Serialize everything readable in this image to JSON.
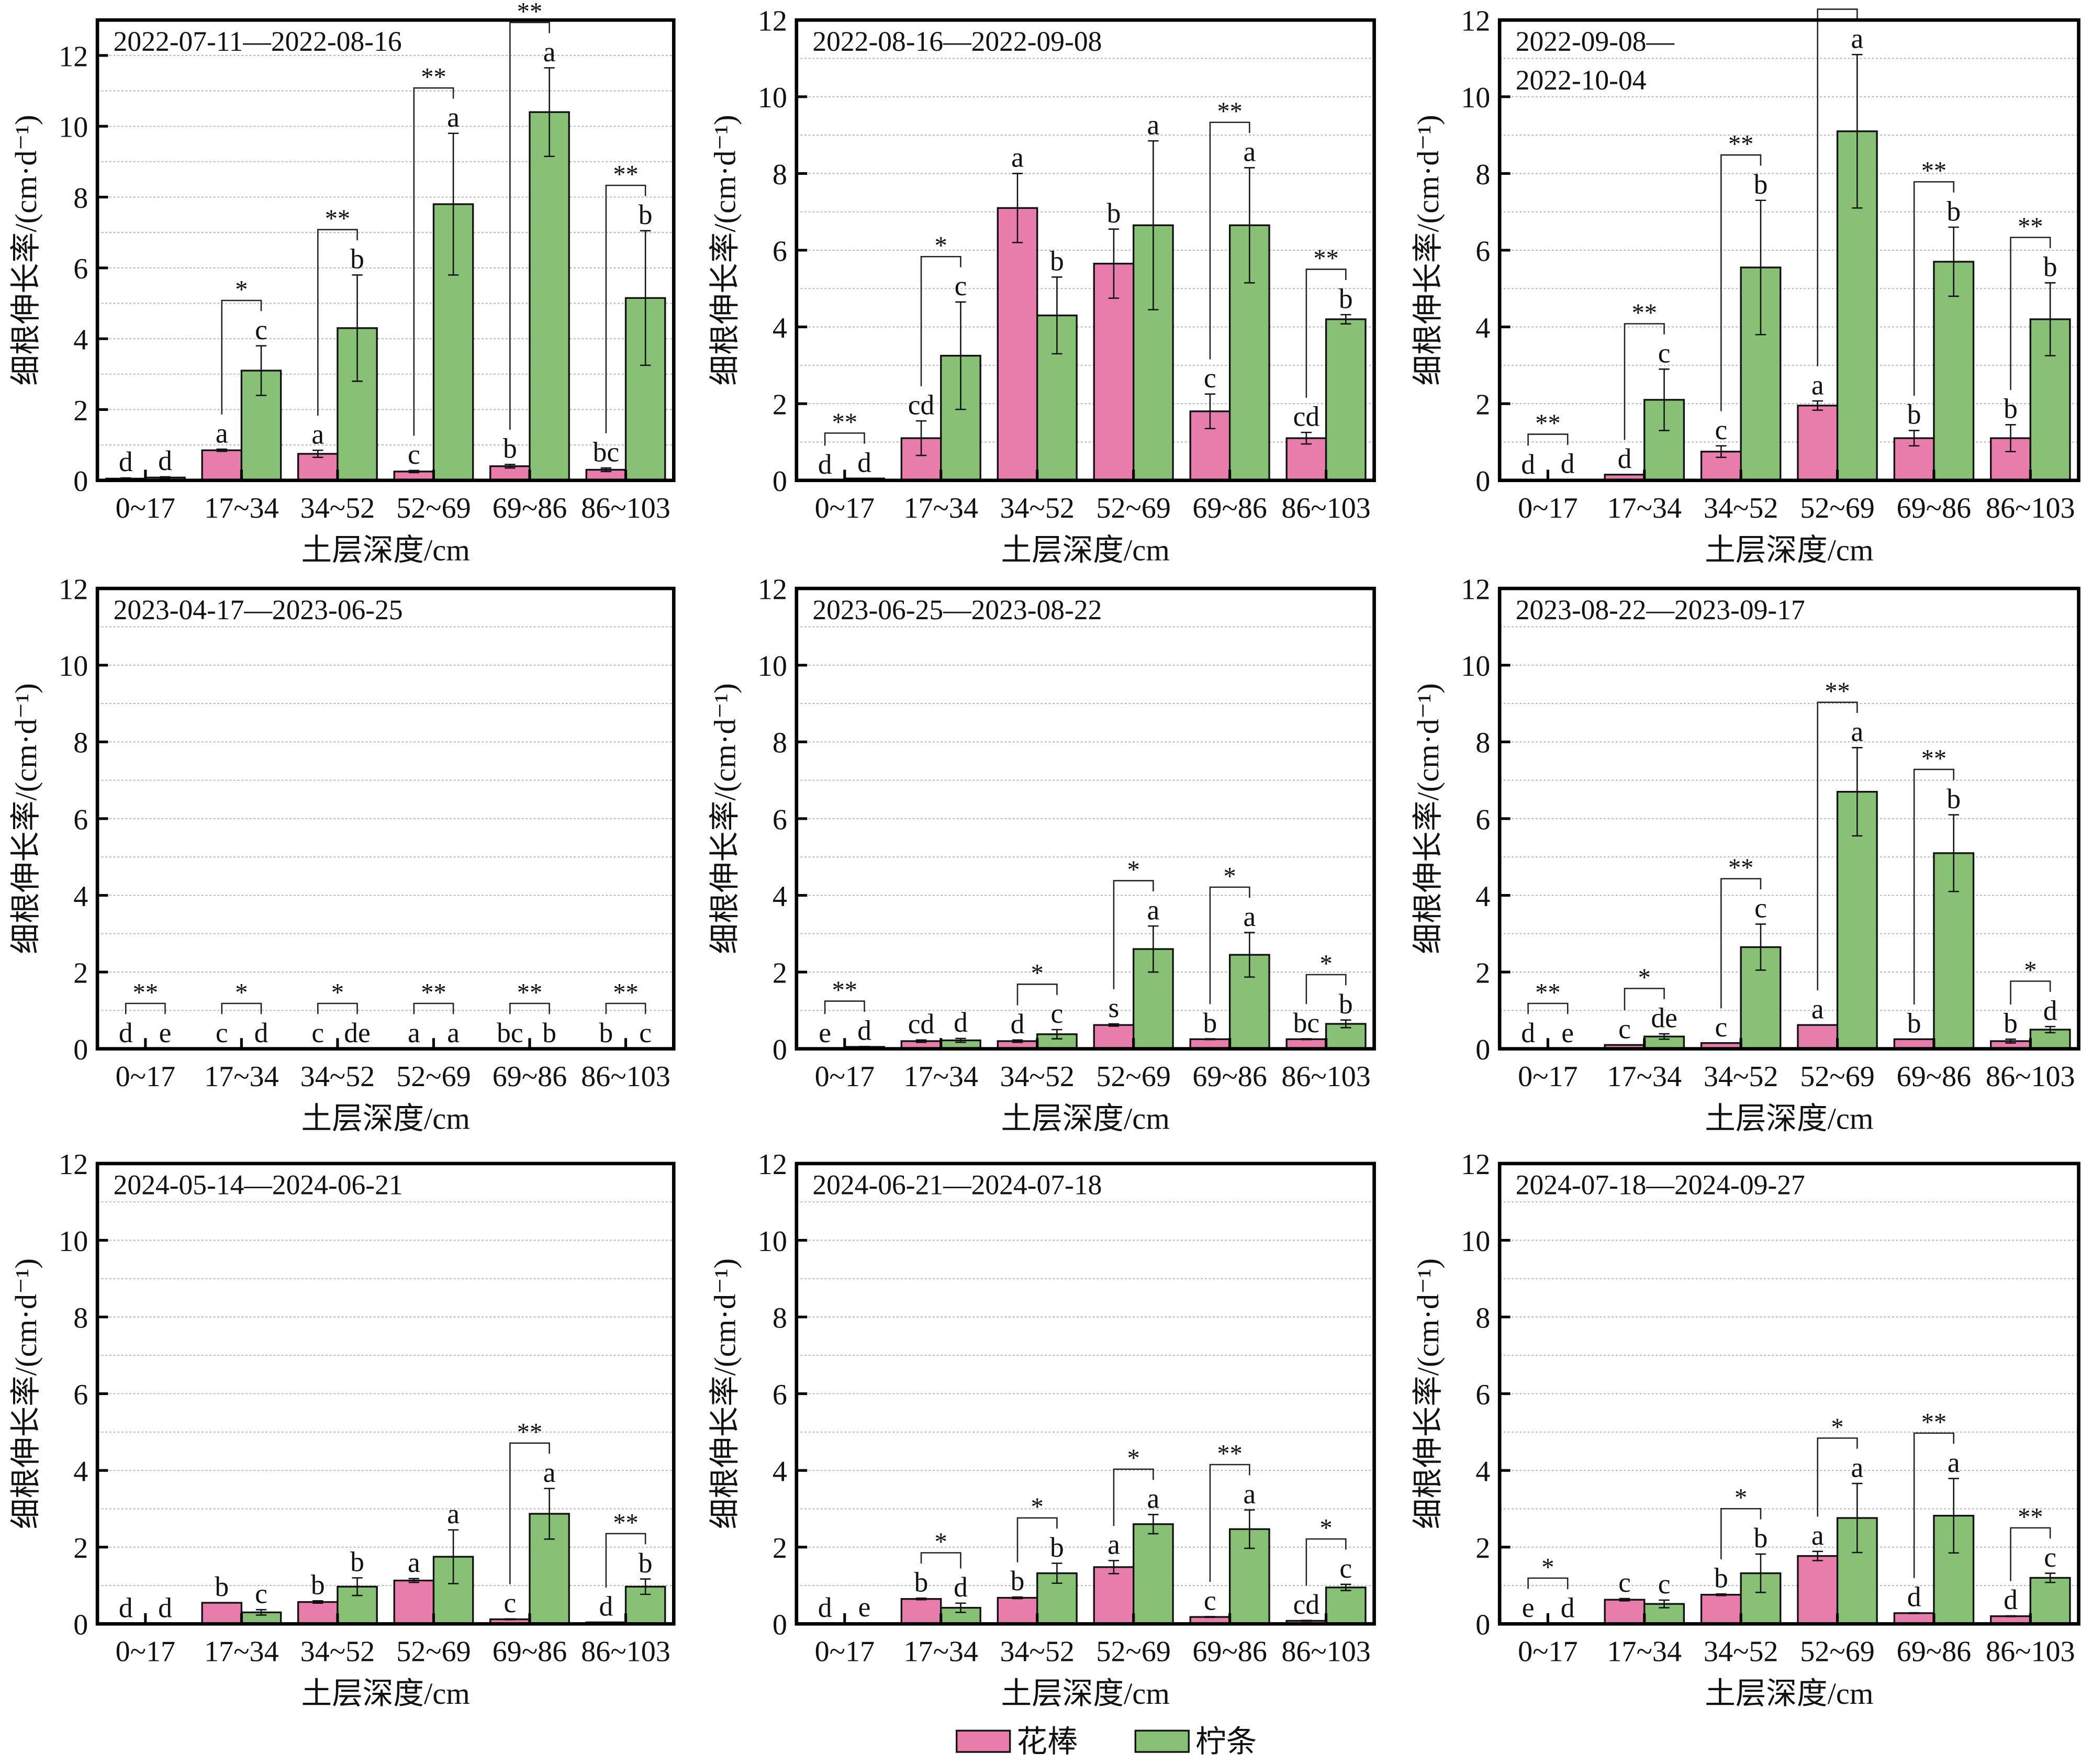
{
  "colors": {
    "series1": "#E87DAC",
    "series2": "#88C176"
  },
  "legend": {
    "placement": "bottom-center",
    "items": [
      "花棒",
      "柠条"
    ]
  },
  "chart_data": [
    {
      "type": "bar",
      "title": [
        "2022-07-11—2022-08-16"
      ],
      "xlabel": "土层深度/cm",
      "ylabel": "细根伸长率/(cm·d⁻¹)",
      "ylim": [
        0,
        13
      ],
      "yticks": [
        0,
        2,
        4,
        6,
        8,
        10,
        12
      ],
      "grid": true,
      "categories": [
        "0~17",
        "17~34",
        "34~52",
        "52~69",
        "69~86",
        "86~103"
      ],
      "series": [
        {
          "name": "花棒",
          "values": [
            0.05,
            0.85,
            0.75,
            0.25,
            0.4,
            0.3
          ],
          "errors": [
            0.02,
            0.03,
            0.1,
            0.03,
            0.05,
            0.05
          ],
          "letters": [
            "d",
            "a",
            "a",
            "c",
            "b",
            "bc"
          ]
        },
        {
          "name": "柠条",
          "values": [
            0.08,
            3.1,
            4.3,
            7.8,
            10.4,
            5.15
          ],
          "errors": [
            0.02,
            0.7,
            1.5,
            2.0,
            1.25,
            1.9
          ],
          "letters": [
            "d",
            "c",
            "b",
            "a",
            "a",
            "b"
          ]
        }
      ],
      "significance": [
        "",
        "*",
        "**",
        "**",
        "**",
        "**"
      ]
    },
    {
      "type": "bar",
      "title": [
        "2022-08-16—2022-09-08"
      ],
      "xlabel": "土层深度/cm",
      "ylabel": "细根伸长率/(cm·d⁻¹)",
      "ylim": [
        0,
        12
      ],
      "yticks": [
        0,
        2,
        4,
        6,
        8,
        10,
        12
      ],
      "grid": true,
      "categories": [
        "0~17",
        "17~34",
        "34~52",
        "52~69",
        "69~86",
        "86~103"
      ],
      "series": [
        {
          "name": "花棒",
          "values": [
            0,
            1.1,
            7.1,
            5.65,
            1.8,
            1.1
          ],
          "errors": [
            0,
            0.45,
            0.9,
            0.9,
            0.45,
            0.15
          ],
          "letters": [
            "d",
            "cd",
            "a",
            "b",
            "c",
            "cd"
          ]
        },
        {
          "name": "柠条",
          "values": [
            0.05,
            3.25,
            4.3,
            6.65,
            6.65,
            4.2
          ],
          "errors": [
            0,
            1.4,
            1.0,
            2.2,
            1.5,
            0.12
          ],
          "letters": [
            "d",
            "c",
            "b",
            "a",
            "a",
            "b"
          ]
        }
      ],
      "significance": [
        "**",
        "*",
        "",
        "",
        "**",
        "**"
      ]
    },
    {
      "type": "bar",
      "title": [
        "2022-09-08—",
        "2022-10-04"
      ],
      "xlabel": "土层深度/cm",
      "ylabel": "细根伸长率/(cm·d⁻¹)",
      "ylim": [
        0,
        12
      ],
      "yticks": [
        0,
        2,
        4,
        6,
        8,
        10,
        12
      ],
      "grid": true,
      "categories": [
        "0~17",
        "17~34",
        "34~52",
        "52~69",
        "69~86",
        "86~103"
      ],
      "series": [
        {
          "name": "花棒",
          "values": [
            0,
            0.15,
            0.75,
            1.95,
            1.1,
            1.1
          ],
          "errors": [
            0,
            0,
            0.15,
            0.12,
            0.2,
            0.35
          ],
          "letters": [
            "d",
            "d",
            "c",
            "a",
            "b",
            "b"
          ]
        },
        {
          "name": "柠条",
          "values": [
            0.02,
            2.1,
            5.55,
            9.1,
            5.7,
            4.2
          ],
          "errors": [
            0,
            0.8,
            1.75,
            2.0,
            0.9,
            0.95
          ],
          "letters": [
            "d",
            "c",
            "b",
            "a",
            "b",
            "b"
          ]
        }
      ],
      "significance": [
        "**",
        "**",
        "**",
        "**",
        "**",
        "**"
      ]
    },
    {
      "type": "bar",
      "title": [
        "2023-04-17—2023-06-25"
      ],
      "xlabel": "土层深度/cm",
      "ylabel": "细根伸长率/(cm·d⁻¹)",
      "ylim": [
        0,
        12
      ],
      "yticks": [
        0,
        2,
        4,
        6,
        8,
        10,
        12
      ],
      "grid": true,
      "categories": [
        "0~17",
        "17~34",
        "34~52",
        "52~69",
        "69~86",
        "86~103"
      ],
      "series": [
        {
          "name": "花棒",
          "values": [
            0,
            0,
            0,
            0,
            0,
            0
          ],
          "errors": [
            0,
            0,
            0,
            0,
            0,
            0
          ],
          "letters": [
            "d",
            "c",
            "c",
            "a",
            "bc",
            "b"
          ]
        },
        {
          "name": "柠条",
          "values": [
            0,
            0,
            0,
            0,
            0,
            0
          ],
          "errors": [
            0,
            0,
            0,
            0,
            0,
            0
          ],
          "letters": [
            "e",
            "d",
            "de",
            "a",
            "b",
            "c"
          ]
        }
      ],
      "significance": [
        "**",
        "*",
        "*",
        "**",
        "**",
        "**"
      ]
    },
    {
      "type": "bar",
      "title": [
        "2023-06-25—2023-08-22"
      ],
      "xlabel": "土层深度/cm",
      "ylabel": "细根伸长率/(cm·d⁻¹)",
      "ylim": [
        0,
        12
      ],
      "yticks": [
        0,
        2,
        4,
        6,
        8,
        10,
        12
      ],
      "grid": true,
      "categories": [
        "0~17",
        "17~34",
        "34~52",
        "52~69",
        "69~86",
        "86~103"
      ],
      "series": [
        {
          "name": "花棒",
          "values": [
            0,
            0.2,
            0.2,
            0.62,
            0.25,
            0.25
          ],
          "errors": [
            0,
            0.03,
            0.03,
            0.03,
            0.01,
            0.01
          ],
          "letters": [
            "e",
            "cd",
            "d",
            "s",
            "b",
            "bc"
          ]
        },
        {
          "name": "柠条",
          "values": [
            0.05,
            0.22,
            0.38,
            2.6,
            2.45,
            0.65
          ],
          "errors": [
            0.01,
            0.05,
            0.12,
            0.6,
            0.58,
            0.1
          ],
          "letters": [
            "d",
            "d",
            "c",
            "a",
            "a",
            "b"
          ]
        }
      ],
      "significance": [
        "**",
        "",
        "*",
        "*",
        "*",
        "*"
      ]
    },
    {
      "type": "bar",
      "title": [
        "2023-08-22—2023-09-17"
      ],
      "xlabel": "土层深度/cm",
      "ylabel": "细根伸长率/(cm·d⁻¹)",
      "ylim": [
        0,
        12
      ],
      "yticks": [
        0,
        2,
        4,
        6,
        8,
        10,
        12
      ],
      "grid": true,
      "categories": [
        "0~17",
        "17~34",
        "34~52",
        "52~69",
        "69~86",
        "86~103"
      ],
      "series": [
        {
          "name": "花棒",
          "values": [
            0,
            0.1,
            0.15,
            0.62,
            0.25,
            0.2
          ],
          "errors": [
            0,
            0,
            0,
            0,
            0,
            0.05
          ],
          "letters": [
            "d",
            "c",
            "c",
            "a",
            "b",
            "b"
          ]
        },
        {
          "name": "柠条",
          "values": [
            0,
            0.32,
            2.65,
            6.7,
            5.1,
            0.5
          ],
          "errors": [
            0,
            0.07,
            0.6,
            1.15,
            1.0,
            0.08
          ],
          "letters": [
            "e",
            "de",
            "c",
            "a",
            "b",
            "d"
          ]
        }
      ],
      "significance": [
        "**",
        "*",
        "**",
        "**",
        "**",
        "*"
      ]
    },
    {
      "type": "bar",
      "title": [
        "2024-05-14—2024-06-21"
      ],
      "xlabel": "土层深度/cm",
      "ylabel": "细根伸长率/(cm·d⁻¹)",
      "ylim": [
        0,
        12
      ],
      "yticks": [
        0,
        2,
        4,
        6,
        8,
        10,
        12
      ],
      "grid": true,
      "categories": [
        "0~17",
        "17~34",
        "34~52",
        "52~69",
        "69~86",
        "86~103"
      ],
      "series": [
        {
          "name": "花棒",
          "values": [
            0,
            0.55,
            0.57,
            1.13,
            0.12,
            0.04
          ],
          "errors": [
            0,
            0,
            0.03,
            0.05,
            0.01,
            0
          ],
          "letters": [
            "d",
            "b",
            "b",
            "a",
            "c",
            "d"
          ]
        },
        {
          "name": "柠条",
          "values": [
            0,
            0.3,
            0.97,
            1.75,
            2.87,
            0.97
          ],
          "errors": [
            0,
            0.07,
            0.23,
            0.7,
            0.66,
            0.2
          ],
          "letters": [
            "d",
            "c",
            "b",
            "a",
            "a",
            "b"
          ]
        }
      ],
      "significance": [
        "",
        "",
        "",
        "",
        "**",
        "**"
      ]
    },
    {
      "type": "bar",
      "title": [
        "2024-06-21—2024-07-18"
      ],
      "xlabel": "土层深度/cm",
      "ylabel": "细根伸长率/(cm·d⁻¹)",
      "ylim": [
        0,
        12
      ],
      "yticks": [
        0,
        2,
        4,
        6,
        8,
        10,
        12
      ],
      "grid": true,
      "categories": [
        "0~17",
        "17~34",
        "34~52",
        "52~69",
        "69~86",
        "86~103"
      ],
      "series": [
        {
          "name": "花棒",
          "values": [
            0.01,
            0.65,
            0.68,
            1.48,
            0.18,
            0.08
          ],
          "errors": [
            0,
            0.02,
            0.02,
            0.17,
            0.01,
            0.01
          ],
          "letters": [
            "d",
            "b",
            "b",
            "a",
            "c",
            "cd"
          ]
        },
        {
          "name": "柠条",
          "values": [
            0.02,
            0.42,
            1.32,
            2.6,
            2.47,
            0.95
          ],
          "errors": [
            0,
            0.12,
            0.26,
            0.25,
            0.5,
            0.08
          ],
          "letters": [
            "e",
            "d",
            "b",
            "a",
            "a",
            "c"
          ]
        }
      ],
      "significance": [
        "",
        "*",
        "*",
        "*",
        "**",
        "*"
      ]
    },
    {
      "type": "bar",
      "title": [
        "2024-07-18—2024-09-27"
      ],
      "xlabel": "土层深度/cm",
      "ylabel": "细根伸长率/(cm·d⁻¹)",
      "ylim": [
        0,
        12
      ],
      "yticks": [
        0,
        2,
        4,
        6,
        8,
        10,
        12
      ],
      "grid": true,
      "categories": [
        "0~17",
        "17~34",
        "34~52",
        "52~69",
        "69~86",
        "86~103"
      ],
      "series": [
        {
          "name": "花棒",
          "values": [
            0.01,
            0.63,
            0.76,
            1.77,
            0.28,
            0.2
          ],
          "errors": [
            0,
            0.03,
            0.02,
            0.12,
            0.01,
            0.01
          ],
          "letters": [
            "e",
            "c",
            "b",
            "a",
            "d",
            "d"
          ]
        },
        {
          "name": "柠条",
          "values": [
            0,
            0.52,
            1.32,
            2.76,
            2.82,
            1.2
          ],
          "errors": [
            0,
            0.1,
            0.5,
            0.9,
            0.97,
            0.12
          ],
          "letters": [
            "d",
            "c",
            "b",
            "a",
            "a",
            "c"
          ]
        }
      ],
      "significance": [
        "*",
        "",
        "*",
        "*",
        "**",
        "**"
      ]
    }
  ]
}
